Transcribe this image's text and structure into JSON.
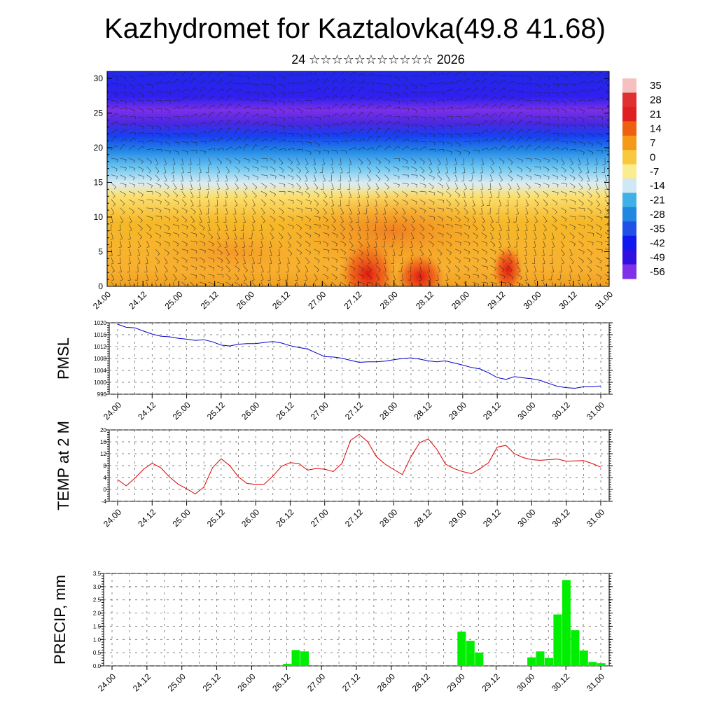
{
  "title": "Kazhydromet for Kaztalovka(49.8 41.68)",
  "subtitle": "24 ☆☆☆☆☆☆☆☆☆☆☆ 2026",
  "x_tick_labels": [
    "24.00",
    "24.12",
    "25.00",
    "25.12",
    "26.00",
    "26.12",
    "27.00",
    "27.12",
    "28.00",
    "28.12",
    "29.00",
    "29.12",
    "30.00",
    "30.12",
    "31.00"
  ],
  "chart_data": [
    {
      "type": "heatmap",
      "name": "cross-section",
      "y_ticks": [
        0,
        5,
        10,
        15,
        20,
        25,
        30
      ],
      "ylim": [
        0,
        31
      ],
      "colorbar": {
        "labels": [
          "35",
          "28",
          "21",
          "14",
          "7",
          "0",
          "-7",
          "-14",
          "-21",
          "-28",
          "-35",
          "-42",
          "-49",
          "-56"
        ],
        "colors": [
          "#f4c0c0",
          "#e03030",
          "#e02020",
          "#ee6010",
          "#f49a18",
          "#f8c840",
          "#fcec90",
          "#d0e8f4",
          "#40b0e8",
          "#2088e0",
          "#2050e8",
          "#1018f0",
          "#3010e0",
          "#8030e8"
        ]
      }
    },
    {
      "type": "line",
      "ylabel": "PMSL",
      "color": "#0000cc",
      "ylim": [
        996,
        1020
      ],
      "y_ticks": [
        996,
        1000,
        1004,
        1008,
        1012,
        1016,
        1020
      ],
      "values": [
        1019.5,
        1018.5,
        1018.3,
        1017.2,
        1016.2,
        1015.5,
        1015.3,
        1014.8,
        1014.5,
        1014.1,
        1014.3,
        1013.6,
        1012.5,
        1012.2,
        1012.8,
        1013.0,
        1013.0,
        1013.4,
        1013.7,
        1013.2,
        1012.3,
        1011.7,
        1011.2,
        1009.9,
        1008.6,
        1008.5,
        1008.1,
        1007.4,
        1006.7,
        1006.9,
        1006.9,
        1007.1,
        1007.6,
        1008.0,
        1008.2,
        1007.8,
        1007.2,
        1006.9,
        1007.2,
        1006.5,
        1005.8,
        1005.0,
        1004.5,
        1003.2,
        1001.6,
        1001.0,
        1001.9,
        1001.5,
        1001.2,
        1000.6,
        999.6,
        998.6,
        998.2,
        998.0,
        998.5,
        998.5,
        998.8
      ]
    },
    {
      "type": "line",
      "ylabel": "TEMP at 2 M",
      "color": "#dd0000",
      "ylim": [
        -4,
        20
      ],
      "y_ticks": [
        -4,
        0,
        4,
        8,
        12,
        16,
        20
      ],
      "values": [
        3.3,
        1.2,
        3.8,
        6.8,
        8.8,
        7.3,
        4.2,
        1.8,
        0.2,
        -1.5,
        0.8,
        7.3,
        10.3,
        8.0,
        4.2,
        2.0,
        1.7,
        1.8,
        4.5,
        7.8,
        9.0,
        8.7,
        6.5,
        7.0,
        6.8,
        6.0,
        8.7,
        16.5,
        18.5,
        16.0,
        11.0,
        8.5,
        6.7,
        5.0,
        11.0,
        15.7,
        17.0,
        13.5,
        8.5,
        7.0,
        6.0,
        5.3,
        7.0,
        9.0,
        14.2,
        14.8,
        12.0,
        10.7,
        10.0,
        9.8,
        10.0,
        10.2,
        9.5,
        9.6,
        9.7,
        8.7,
        7.5
      ]
    },
    {
      "type": "bar",
      "ylabel": "PRECIP, mm",
      "color": "#00ee00",
      "ylim": [
        0,
        3.5
      ],
      "y_ticks": [
        "0.0",
        "0.5",
        "1.0",
        "1.5",
        "2.0",
        "2.5",
        "3.0",
        "3.5"
      ],
      "values": [
        0,
        0,
        0,
        0,
        0,
        0,
        0,
        0,
        0,
        0,
        0,
        0,
        0,
        0,
        0,
        0,
        0,
        0,
        0,
        0,
        0.08,
        0.6,
        0.55,
        0,
        0,
        0,
        0,
        0,
        0,
        0,
        0,
        0,
        0,
        0,
        0,
        0,
        0,
        0,
        0,
        0,
        1.3,
        0.95,
        0.5,
        0,
        0,
        0,
        0,
        0.02,
        0.32,
        0.55,
        0.3,
        1.95,
        3.25,
        1.35,
        0.58,
        0.15,
        0.1
      ]
    }
  ]
}
